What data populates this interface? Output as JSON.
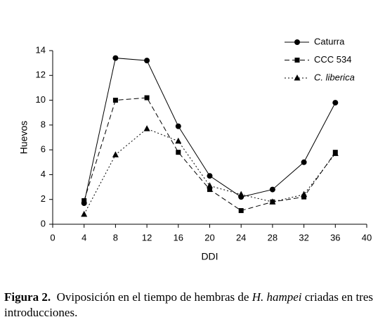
{
  "chart_data": {
    "type": "line",
    "x": [
      4,
      8,
      12,
      16,
      20,
      24,
      28,
      32,
      36
    ],
    "series": [
      {
        "name": "Caturra",
        "color": "#000000",
        "marker": "circle",
        "line_style": "solid",
        "values": [
          1.7,
          13.4,
          13.2,
          7.9,
          3.9,
          2.2,
          2.8,
          5.0,
          9.8
        ]
      },
      {
        "name": "CCC 534",
        "color": "#000000",
        "marker": "square",
        "line_style": "dashed",
        "values": [
          1.9,
          10.0,
          10.2,
          5.8,
          2.8,
          1.1,
          1.8,
          2.2,
          5.8
        ]
      },
      {
        "name": "C. liberica",
        "color": "#000000",
        "marker": "triangle",
        "line_style": "dotted",
        "italic": true,
        "values": [
          0.8,
          5.6,
          7.7,
          6.7,
          3.1,
          2.4,
          1.8,
          2.4,
          5.7
        ]
      }
    ],
    "xlim": [
      0,
      40
    ],
    "xticks": [
      0,
      4,
      8,
      12,
      16,
      20,
      24,
      28,
      32,
      36,
      40
    ],
    "ylim": [
      0,
      14
    ],
    "yticks": [
      0,
      2,
      4,
      6,
      8,
      10,
      12,
      14
    ],
    "xlabel": "DDI",
    "ylabel": "Huevos",
    "grid": false,
    "legend": "top-right"
  },
  "caption": {
    "label": "Figura 2.",
    "before": "Oviposición en el tiempo de hembras de",
    "species": "H. hampei",
    "after": "criadas en tres introducciones."
  }
}
